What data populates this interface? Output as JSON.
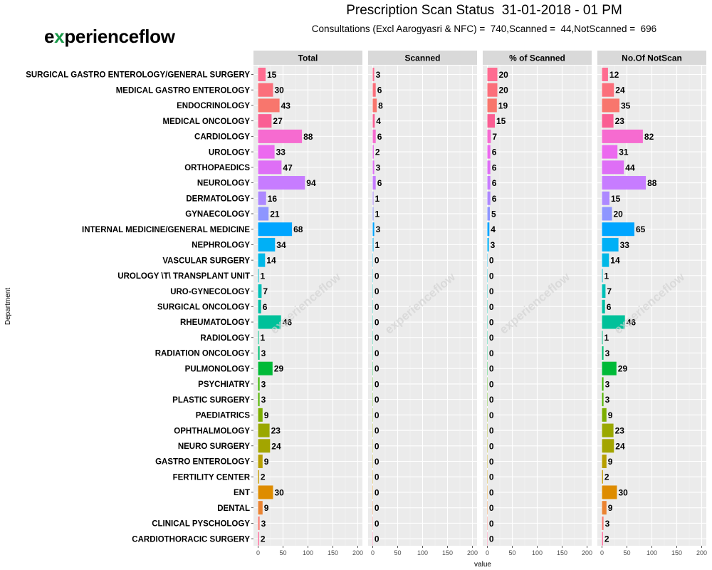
{
  "title": "Prescription Scan Status  31-01-2018 - 01 PM",
  "subtitle": "Consultations (Excl Aarogyasri & NFC) =  740,Scanned =  44,NotScanned =  696",
  "logo": {
    "text_left": "e",
    "text_mark": "x",
    "text_right": "perienceflow",
    "watermark": "experienceflow"
  },
  "chart_data": {
    "type": "bar",
    "orientation": "horizontal",
    "xlabel": "value",
    "ylabel": "Department",
    "xlim": [
      0,
      200
    ],
    "xticks": [
      "0",
      "50",
      "100",
      "150",
      "200"
    ],
    "grid": true,
    "categories": [
      "SURGICAL GASTRO ENTEROLOGY/GENERAL SURGERY",
      "MEDICAL GASTRO ENTEROLOGY",
      "ENDOCRINOLOGY",
      "MEDICAL ONCOLOGY",
      "CARDIOLOGY",
      "UROLOGY",
      "ORTHOPAEDICS",
      "NEUROLOGY",
      "DERMATOLOGY",
      "GYNAECOLOGY",
      "INTERNAL MEDICINE/GENERAL MEDICINE",
      "NEPHROLOGY",
      "VASCULAR SURGERY",
      "UROLOGY \\T\\ TRANSPLANT UNIT",
      "URO-GYNECOLOGY",
      "SURGICAL ONCOLOGY",
      "RHEUMATOLOGY",
      "RADIOLOGY",
      "RADIATION ONCOLOGY",
      "PULMONOLOGY",
      "PSYCHIATRY",
      "PLASTIC SURGERY",
      "PAEDIATRICS",
      "OPHTHALMOLOGY",
      "NEURO SURGERY",
      "GASTRO ENTEROLOGY",
      "FERTILITY CENTER",
      "ENT",
      "DENTAL",
      "CLINICAL PYSCHOLOGY",
      "CARDIOTHORACIC SURGERY"
    ],
    "colors": [
      "#FF6C91",
      "#FB6F7B",
      "#F8766D",
      "#FA5E93",
      "#F66BD0",
      "#EC69EF",
      "#DE6FF6",
      "#C77CFF",
      "#AD88FF",
      "#8E96FF",
      "#00A5FF",
      "#00B0F6",
      "#00B8E7",
      "#00BFD0",
      "#00C0B8",
      "#00BFA4",
      "#00C19A",
      "#00C08B",
      "#00BF74",
      "#00BA38",
      "#39B600",
      "#53B400",
      "#7CAE00",
      "#9AA800",
      "#A3A500",
      "#B79F00",
      "#C49A00",
      "#DE8C00",
      "#EA8331",
      "#F8766D",
      "#FF6A98"
    ],
    "series": [
      {
        "name": "Total",
        "values": [
          15,
          30,
          43,
          27,
          88,
          33,
          47,
          94,
          16,
          21,
          68,
          34,
          14,
          1,
          7,
          6,
          46,
          1,
          3,
          29,
          3,
          3,
          9,
          23,
          24,
          9,
          2,
          30,
          9,
          3,
          2
        ]
      },
      {
        "name": "Scanned",
        "values": [
          3,
          6,
          8,
          4,
          6,
          2,
          3,
          6,
          1,
          1,
          3,
          1,
          0,
          0,
          0,
          0,
          0,
          0,
          0,
          0,
          0,
          0,
          0,
          0,
          0,
          0,
          0,
          0,
          0,
          0,
          0
        ]
      },
      {
        "name": "% of Scanned",
        "values": [
          20,
          20,
          19,
          15,
          7,
          6,
          6,
          6,
          6,
          5,
          4,
          3,
          0,
          0,
          0,
          0,
          0,
          0,
          0,
          0,
          0,
          0,
          0,
          0,
          0,
          0,
          0,
          0,
          0,
          0,
          0
        ]
      },
      {
        "name": "No.Of NotScan",
        "values": [
          12,
          24,
          35,
          23,
          82,
          31,
          44,
          88,
          15,
          20,
          65,
          33,
          14,
          1,
          7,
          6,
          46,
          1,
          3,
          29,
          3,
          3,
          9,
          23,
          24,
          9,
          2,
          30,
          9,
          3,
          2
        ]
      }
    ]
  }
}
